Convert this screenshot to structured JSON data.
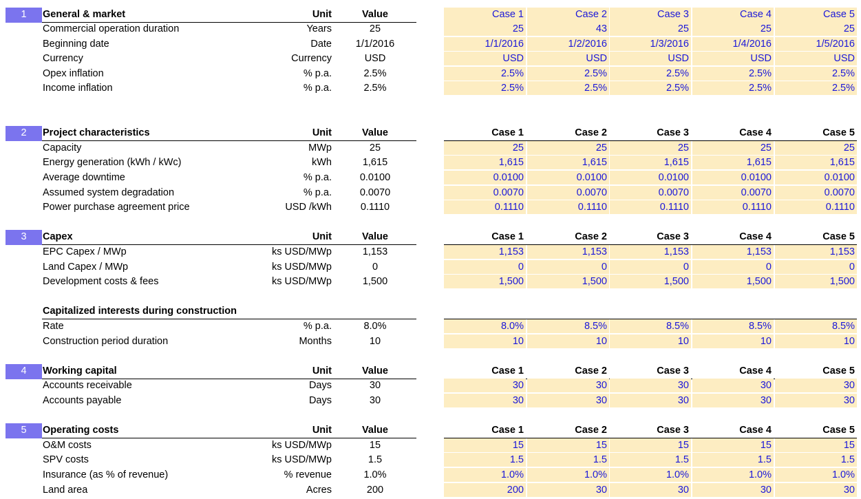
{
  "columns": {
    "unit": "Unit",
    "value": "Value"
  },
  "case_headers": [
    "Case 1",
    "Case 2",
    "Case 3",
    "Case 4",
    "Case 5"
  ],
  "sections": [
    {
      "number": "1",
      "title": "General & market",
      "rows": [
        {
          "label": "Commercial operation duration",
          "unit": "Years",
          "value": "25",
          "cases": [
            "25",
            "43",
            "25",
            "25",
            "25"
          ]
        },
        {
          "label": "Beginning date",
          "unit": "Date",
          "value": "1/1/2016",
          "cases": [
            "1/1/2016",
            "1/2/2016",
            "1/3/2016",
            "1/4/2016",
            "1/5/2016"
          ]
        },
        {
          "label": "Currency",
          "unit": "Currency",
          "value": "USD",
          "cases": [
            "USD",
            "USD",
            "USD",
            "USD",
            "USD"
          ]
        },
        {
          "label": "Opex inflation",
          "unit": "% p.a.",
          "value": "2.5%",
          "cases": [
            "2.5%",
            "2.5%",
            "2.5%",
            "2.5%",
            "2.5%"
          ]
        },
        {
          "label": "Income inflation",
          "unit": "% p.a.",
          "value": "2.5%",
          "cases": [
            "2.5%",
            "2.5%",
            "2.5%",
            "2.5%",
            "2.5%"
          ]
        }
      ]
    },
    {
      "number": "2",
      "title": "Project characteristics",
      "rows": [
        {
          "label": "Capacity",
          "unit": "MWp",
          "value": "25",
          "cases": [
            "25",
            "25",
            "25",
            "25",
            "25"
          ]
        },
        {
          "label": "Energy generation (kWh / kWc)",
          "unit": "kWh",
          "value": "1,615",
          "cases": [
            "1,615",
            "1,615",
            "1,615",
            "1,615",
            "1,615"
          ]
        },
        {
          "label": "Average downtime",
          "unit": "% p.a.",
          "value": "0.0100",
          "cases": [
            "0.0100",
            "0.0100",
            "0.0100",
            "0.0100",
            "0.0100"
          ]
        },
        {
          "label": "Assumed system degradation",
          "unit": "% p.a.",
          "value": "0.0070",
          "cases": [
            "0.0070",
            "0.0070",
            "0.0070",
            "0.0070",
            "0.0070"
          ]
        },
        {
          "label": "Power purchase agreement price",
          "unit": "USD /kWh",
          "value": "0.1110",
          "cases": [
            "0.1110",
            "0.1110",
            "0.1110",
            "0.1110",
            "0.1110"
          ]
        }
      ]
    },
    {
      "number": "3",
      "title": "Capex",
      "rows": [
        {
          "label": "EPC Capex / MWp",
          "unit": "ks USD/MWp",
          "value": "1,153",
          "cases": [
            "1,153",
            "1,153",
            "1,153",
            "1,153",
            "1,153"
          ]
        },
        {
          "label": "Land Capex  / MWp",
          "unit": "ks USD/MWp",
          "value": "0",
          "cases": [
            "0",
            "0",
            "0",
            "0",
            "0"
          ]
        },
        {
          "label": "Development costs & fees",
          "unit": "ks USD/MWp",
          "value": "1,500",
          "cases": [
            "1,500",
            "1,500",
            "1,500",
            "1,500",
            "1,500"
          ]
        }
      ],
      "subsection": {
        "title": "Capitalized interests during construction",
        "rows": [
          {
            "label": "Rate",
            "unit": "% p.a.",
            "value": "8.0%",
            "cases": [
              "8.0%",
              "8.5%",
              "8.5%",
              "8.5%",
              "8.5%"
            ]
          },
          {
            "label": "Construction period duration",
            "unit": "Months",
            "value": "10",
            "cases": [
              "10",
              "10",
              "10",
              "10",
              "10"
            ]
          }
        ]
      }
    },
    {
      "number": "4",
      "title": "Working capital",
      "rows": [
        {
          "label": "Accounts receivable",
          "unit": "Days",
          "value": "30",
          "cases": [
            "30",
            "30",
            "30",
            "30",
            "30"
          ]
        },
        {
          "label": "Accounts payable",
          "unit": "Days",
          "value": "30",
          "cases": [
            "30",
            "30",
            "30",
            "30",
            "30"
          ]
        }
      ]
    },
    {
      "number": "5",
      "title": "Operating costs",
      "rows": [
        {
          "label": "O&M costs",
          "unit": "ks USD/MWp",
          "value": "15",
          "cases": [
            "15",
            "15",
            "15",
            "15",
            "15"
          ]
        },
        {
          "label": "SPV costs",
          "unit": "ks USD/MWp",
          "value": "1.5",
          "cases": [
            "1.5",
            "1.5",
            "1.5",
            "1.5",
            "1.5"
          ]
        },
        {
          "label": "Insurance (as % of revenue)",
          "unit": "% revenue",
          "value": "1.0%",
          "cases": [
            "1.0%",
            "1.0%",
            "1.0%",
            "1.0%",
            "1.0%"
          ]
        },
        {
          "label": "Land area",
          "unit": "Acres",
          "value": "200",
          "cases": [
            "200",
            "30",
            "30",
            "30",
            "30"
          ]
        }
      ]
    }
  ]
}
